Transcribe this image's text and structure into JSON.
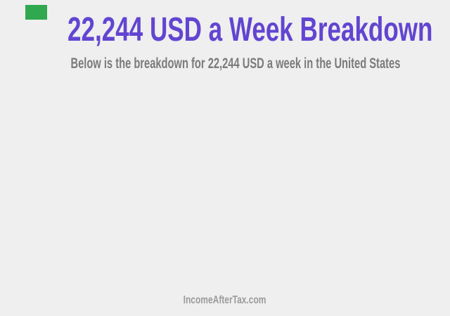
{
  "content": {
    "title": "22,244 USD a Week Breakdown",
    "subtitle": "Below is the breakdown for 22,244 USD a week in the United States",
    "watermark": "IncomeAfterTax.com"
  },
  "colors": {
    "background": "#efefef",
    "title": "#6245d1",
    "subtitle": "#7b7b7b",
    "watermark": "#9b9b9b",
    "top_left_marker": "#2fa84f"
  }
}
